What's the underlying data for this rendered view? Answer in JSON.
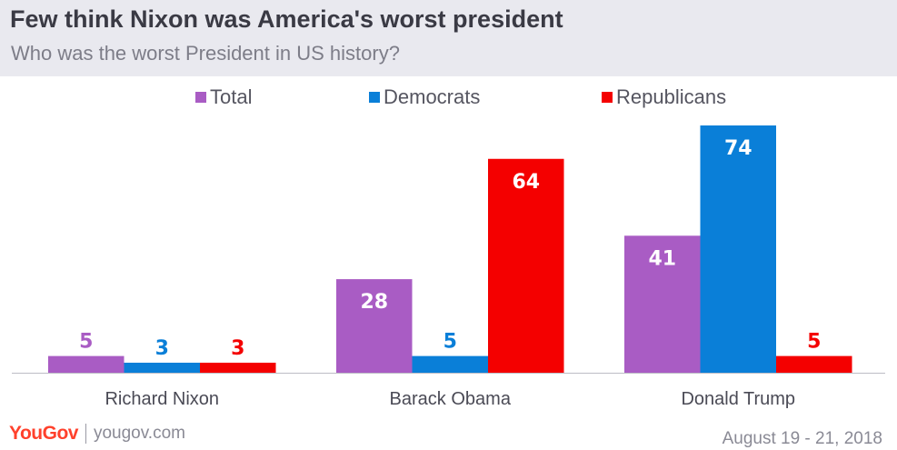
{
  "header": {
    "title": "Few think Nixon was America's worst president",
    "subtitle": "Who was the worst President in US history?"
  },
  "colors": {
    "header_bg": "#e9e9ef",
    "total": "#a95cc4",
    "democrats": "#0a7fd8",
    "republicans": "#f40000"
  },
  "chart_data": {
    "type": "bar",
    "title": "Few think Nixon was America's worst president",
    "subtitle": "Who was the worst President in US history?",
    "categories": [
      "Richard Nixon",
      "Barack Obama",
      "Donald Trump"
    ],
    "series": [
      {
        "name": "Total",
        "color": "#a95cc4",
        "values": [
          5,
          28,
          41
        ]
      },
      {
        "name": "Democrats",
        "color": "#0a7fd8",
        "values": [
          3,
          5,
          74
        ]
      },
      {
        "name": "Republicans",
        "color": "#f40000",
        "values": [
          3,
          64,
          5
        ]
      }
    ],
    "ylim": [
      0,
      74
    ],
    "grid": false,
    "legend": "top-center",
    "data_labels": true
  },
  "footer": {
    "brand": "YouGov",
    "site": "yougov.com",
    "date": "August 19 - 21, 2018"
  }
}
